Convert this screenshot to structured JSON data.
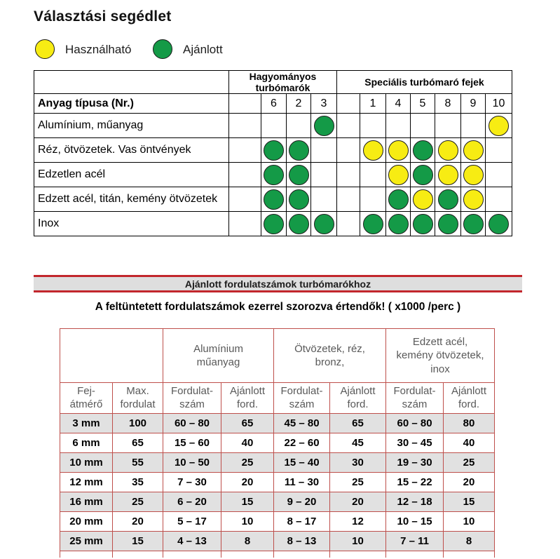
{
  "page": {
    "title": "Választási segédlet",
    "legend": {
      "usable_label": "Használható",
      "recommended_label": "Ajánlott"
    },
    "colors": {
      "usable_yellow": "#F7EC13",
      "recommended_green": "#149A47",
      "matrix_border_black": "#000000",
      "speed_table_border_red": "#BE4F4B",
      "banner_line_red": "#C2272D",
      "banner_band_gray": "#DEDEDE",
      "shaded_row_gray": "#E1E1E1",
      "header_text_gray": "#595959"
    }
  },
  "selection_table": {
    "group_headers": [
      "Hagyományos turbómarók",
      "Speciális turbómaró fejek"
    ],
    "row_header": "Anyag típusa (Nr.)",
    "tool_numbers": [
      "",
      "6",
      "2",
      "3",
      "",
      "1",
      "4",
      "5",
      "8",
      "9",
      "10"
    ],
    "dot_codes": {
      "G": "Ajánlott (zöld)",
      "Y": "Használható (sárga)"
    },
    "rows": [
      {
        "material": "Alumínium, műanyag",
        "cells": [
          "",
          "",
          "",
          "G",
          "",
          "",
          "",
          "",
          "",
          "",
          "Y"
        ]
      },
      {
        "material": "Réz, ötvözetek. Vas öntvények",
        "cells": [
          "",
          "G",
          "G",
          "",
          "",
          "Y",
          "Y",
          "G",
          "Y",
          "Y",
          ""
        ]
      },
      {
        "material": "Edzetlen acél",
        "cells": [
          "",
          "G",
          "G",
          "",
          "",
          "",
          "Y",
          "G",
          "Y",
          "Y",
          ""
        ]
      },
      {
        "material": "Edzett acél, titán, kemény ötvözetek",
        "cells": [
          "",
          "G",
          "G",
          "",
          "",
          "",
          "G",
          "Y",
          "G",
          "Y",
          ""
        ]
      },
      {
        "material": "Inox",
        "cells": [
          "",
          "G",
          "G",
          "G",
          "",
          "G",
          "G",
          "G",
          "G",
          "G",
          "G"
        ]
      }
    ]
  },
  "speed_section": {
    "banner_title": "Ajánlott fordulatszámok turbómarókhoz",
    "note": "A feltüntetett fordulatszámok ezerrel szorozva értendők! ( x1000 /perc )"
  },
  "speed_table": {
    "group_headers": [
      "Alumínium\nműanyag",
      "Ötvözetek, réz,\nbronz,",
      "Edzett acél,\nkemény ötvözetek,\ninox"
    ],
    "sub_headers": [
      "Fej-\nátmérő",
      "Max.\nfordulat",
      "Fordulat-\nszám",
      "Ajánlott\nford.",
      "Fordulat-\nszám",
      "Ajánlott\nford.",
      "Fordulat-\nszám",
      "Ajánlott\nford."
    ],
    "rows": [
      {
        "shaded": true,
        "cells": [
          "3 mm",
          "100",
          "60 – 80",
          "65",
          "45 – 80",
          "65",
          "60 – 80",
          "80"
        ]
      },
      {
        "shaded": false,
        "cells": [
          "6 mm",
          "65",
          "15 – 60",
          "40",
          "22 – 60",
          "45",
          "30 – 45",
          "40"
        ]
      },
      {
        "shaded": true,
        "cells": [
          "10 mm",
          "55",
          "10 – 50",
          "25",
          "15 – 40",
          "30",
          "19 – 30",
          "25"
        ]
      },
      {
        "shaded": false,
        "cells": [
          "12 mm",
          "35",
          "7 – 30",
          "20",
          "11 – 30",
          "25",
          "15 – 22",
          "20"
        ]
      },
      {
        "shaded": true,
        "cells": [
          "16 mm",
          "25",
          "6 – 20",
          "15",
          "9 – 20",
          "20",
          "12 – 18",
          "15"
        ]
      },
      {
        "shaded": false,
        "cells": [
          "20 mm",
          "20",
          "5 – 17",
          "10",
          "8 – 17",
          "12",
          "10 – 15",
          "10"
        ]
      },
      {
        "shaded": true,
        "cells": [
          "25 mm",
          "15",
          "4 – 13",
          "8",
          "8 – 13",
          "10",
          "7 – 11",
          "8"
        ]
      }
    ]
  }
}
